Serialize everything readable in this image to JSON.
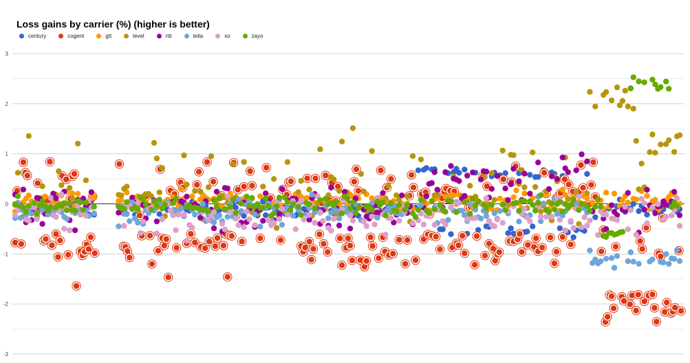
{
  "chart_data": {
    "type": "scatter",
    "title": "Loss gains by carrier (%) (higher is better)",
    "xlabel": "",
    "ylabel": "",
    "ylim": [
      -3,
      3
    ],
    "yticks": [
      3,
      2,
      1,
      0,
      -1,
      -2,
      -3
    ],
    "grid": true,
    "legend": "top-left",
    "x_points": 980,
    "series": [
      {
        "name": "century",
        "color": "#3366cc"
      },
      {
        "name": "cogent",
        "color": "#dc3912",
        "outlined": true
      },
      {
        "name": "gtt",
        "color": "#ff9900"
      },
      {
        "name": "level",
        "color": "#b8960c"
      },
      {
        "name": "ntt",
        "color": "#990099"
      },
      {
        "name": "telia",
        "color": "#6ea6dc"
      },
      {
        "name": "xo",
        "color": "#dda0c8"
      },
      {
        "name": "zayo",
        "color": "#66aa00"
      }
    ]
  }
}
